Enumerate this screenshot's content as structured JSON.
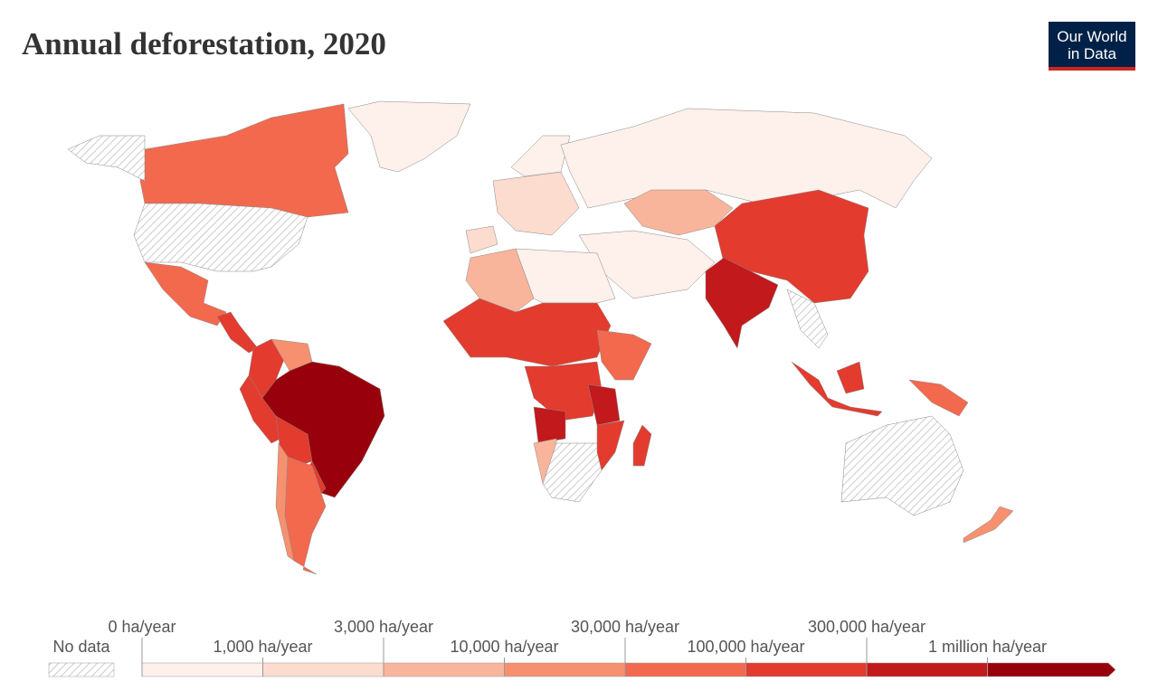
{
  "title": "Annual deforestation, 2020",
  "logo": {
    "line1": "Our World",
    "line2": "in Data"
  },
  "legend": {
    "no_data": "No data",
    "ticks": [
      {
        "value": 0,
        "label": "0 ha/year"
      },
      {
        "value": 1000,
        "label": "1,000 ha/year"
      },
      {
        "value": 3000,
        "label": "3,000 ha/year"
      },
      {
        "value": 10000,
        "label": "10,000 ha/year"
      },
      {
        "value": 30000,
        "label": "30,000 ha/year"
      },
      {
        "value": 100000,
        "label": "100,000 ha/year"
      },
      {
        "value": 300000,
        "label": "300,000 ha/year"
      },
      {
        "value": 1000000,
        "label": "1 million ha/year"
      }
    ],
    "colors": [
      "#fef0ea",
      "#fcdccf",
      "#f9b59b",
      "#f7906f",
      "#f3694e",
      "#e33b2e",
      "#c2191c",
      "#98000b"
    ]
  }
}
